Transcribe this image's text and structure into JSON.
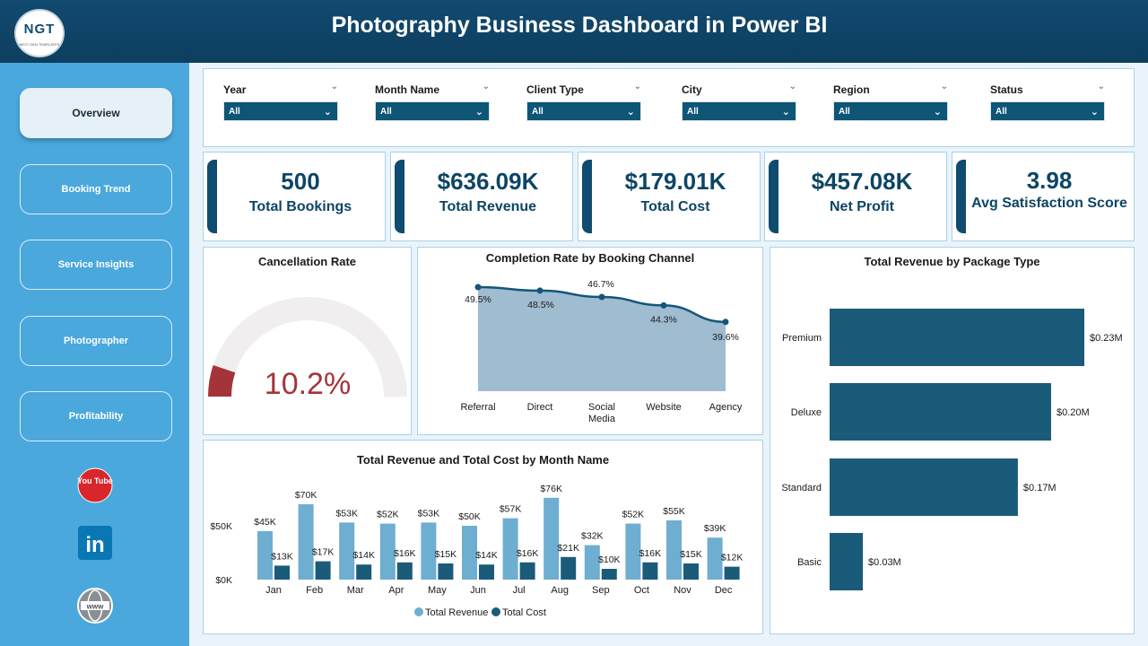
{
  "header": {
    "title": "Photography Business Dashboard in Power BI",
    "logo_text": "NGT",
    "logo_subtext": "NEXT GEN TEMPLATES"
  },
  "nav": [
    {
      "label": "Overview",
      "active": true
    },
    {
      "label": "Booking Trend",
      "active": false
    },
    {
      "label": "Service Insights",
      "active": false
    },
    {
      "label": "Photographer",
      "active": false
    },
    {
      "label": "Profitability",
      "active": false
    }
  ],
  "social": {
    "youtube_text": "You Tube",
    "linkedin_text": "in",
    "web_text": "www"
  },
  "filters": [
    {
      "label": "Year",
      "value": "All"
    },
    {
      "label": "Month Name",
      "value": "All"
    },
    {
      "label": "Client Type",
      "value": "All"
    },
    {
      "label": "City",
      "value": "All"
    },
    {
      "label": "Region",
      "value": "All"
    },
    {
      "label": "Status",
      "value": "All"
    }
  ],
  "kpis": [
    {
      "value": "500",
      "label": "Total Bookings"
    },
    {
      "value": "$636.09K",
      "label": "Total Revenue"
    },
    {
      "value": "$179.01K",
      "label": "Total Cost"
    },
    {
      "value": "$457.08K",
      "label": "Net Profit"
    },
    {
      "value": "3.98",
      "label": "Avg Satisfaction Score"
    }
  ],
  "colors": {
    "header": "#0f4c6f",
    "sidebar": "#4aa8dd",
    "accent_dark": "#1b5b7a",
    "accent_light": "#6eaed0",
    "gauge": "#a4343a",
    "area": "#9fbcd0"
  },
  "chart_data": [
    {
      "id": "gauge",
      "type": "gauge",
      "title": "Cancellation Rate",
      "value": 10.2,
      "display": "10.2%",
      "range": [
        0,
        100
      ]
    },
    {
      "id": "completion",
      "type": "area",
      "title": "Completion Rate by Booking Channel",
      "categories": [
        "Referral",
        "Direct",
        "Social Media",
        "Website",
        "Agency"
      ],
      "values": [
        49.5,
        48.5,
        46.7,
        44.3,
        39.6
      ],
      "labels": [
        "49.5%",
        "48.5%",
        "46.7%",
        "44.3%",
        "39.6%"
      ]
    },
    {
      "id": "monthly",
      "type": "bar",
      "title": "Total Revenue and Total Cost by Month Name",
      "categories": [
        "Jan",
        "Feb",
        "Mar",
        "Apr",
        "May",
        "Jun",
        "Jul",
        "Aug",
        "Sep",
        "Oct",
        "Nov",
        "Dec"
      ],
      "series": [
        {
          "name": "Total Revenue",
          "values": [
            45,
            70,
            53,
            52,
            53,
            50,
            57,
            76,
            32,
            52,
            55,
            39
          ],
          "labels": [
            "$45K",
            "$70K",
            "$53K",
            "$52K",
            "$53K",
            "$50K",
            "$57K",
            "$76K",
            "$32K",
            "$52K",
            "$55K",
            "$39K"
          ]
        },
        {
          "name": "Total Cost",
          "values": [
            13,
            17,
            14,
            16,
            15,
            14,
            16,
            21,
            10,
            16,
            15,
            12
          ],
          "labels": [
            "$13K",
            "$17K",
            "$14K",
            "$16K",
            "$15K",
            "$14K",
            "$16K",
            "$21K",
            "$10K",
            "$16K",
            "$15K",
            "$12K"
          ]
        }
      ],
      "y_ticks": [
        "$0K",
        "$50K"
      ],
      "y_tick_values": [
        0,
        50
      ],
      "legend": "bottom"
    },
    {
      "id": "package",
      "type": "bar",
      "orientation": "horizontal",
      "title": "Total Revenue by Package Type",
      "categories": [
        "Premium",
        "Deluxe",
        "Standard",
        "Basic"
      ],
      "values": [
        0.23,
        0.2,
        0.17,
        0.03
      ],
      "labels": [
        "$0.23M",
        "$0.20M",
        "$0.17M",
        "$0.03M"
      ]
    }
  ]
}
